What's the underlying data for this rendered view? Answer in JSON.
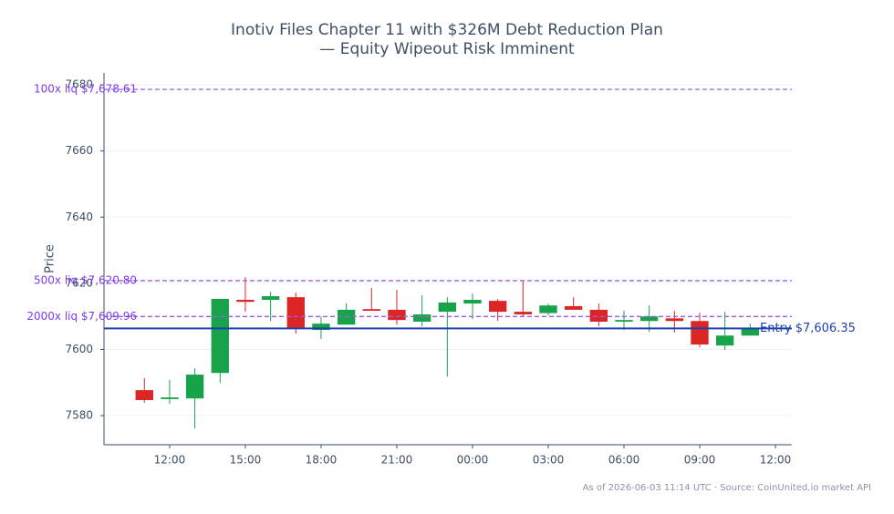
{
  "chart_data": {
    "type": "candlestick",
    "title": [
      "Inotiv Files Chapter 11 with $326M Debt Reduction Plan",
      "— Equity Wipeout Risk Imminent"
    ],
    "ylabel": "Price",
    "footer": "As of 2026-06-03 11:14 UTC · Source: CoinUnited.io market API",
    "x": [
      11,
      12,
      13,
      14,
      15,
      16,
      17,
      18,
      19,
      20,
      21,
      22,
      23,
      24,
      25,
      26,
      27,
      28,
      29,
      30,
      31,
      32,
      33,
      34,
      35
    ],
    "open": [
      7587.7,
      7585.0,
      7585.2,
      7592.9,
      7615.0,
      7615.0,
      7615.8,
      7605.9,
      7607.5,
      7612.2,
      7612.0,
      7608.4,
      7611.4,
      7613.9,
      7614.7,
      7611.4,
      7611.0,
      7613.1,
      7612.0,
      7608.4,
      7608.6,
      7609.4,
      7608.6,
      7601.2,
      7604.2
    ],
    "high": [
      7591.3,
      7590.8,
      7594.3,
      7615.3,
      7621.9,
      7617.5,
      7617.2,
      7610.0,
      7613.9,
      7618.6,
      7618.0,
      7616.4,
      7615.8,
      7616.9,
      7615.3,
      7620.8,
      7613.9,
      7615.8,
      7613.9,
      7611.7,
      7613.3,
      7611.7,
      7611.1,
      7611.4,
      7607.8
    ],
    "low": [
      7583.9,
      7583.6,
      7576.1,
      7589.9,
      7611.4,
      7608.6,
      7604.8,
      7603.1,
      7607.5,
      7611.7,
      7607.5,
      7607.0,
      7591.8,
      7609.2,
      7608.6,
      7610.0,
      7610.3,
      7612.0,
      7607.0,
      7605.9,
      7605.3,
      7605.1,
      7600.7,
      7599.8,
      7604.2
    ],
    "close": [
      7584.7,
      7585.5,
      7592.4,
      7615.3,
      7614.4,
      7616.1,
      7606.2,
      7607.8,
      7612.0,
      7611.7,
      7608.9,
      7610.6,
      7614.2,
      7615.0,
      7611.4,
      7610.6,
      7613.3,
      7612.0,
      7608.4,
      7608.9,
      7610.0,
      7608.6,
      7601.5,
      7604.2,
      7606.4
    ],
    "up_color": "#16a34a",
    "down_color": "#dc2626",
    "xlim": [
      9.4,
      36.65
    ],
    "xticks": [
      {
        "value": 12,
        "label": "12:00"
      },
      {
        "value": 15,
        "label": "15:00"
      },
      {
        "value": 18,
        "label": "18:00"
      },
      {
        "value": 21,
        "label": "21:00"
      },
      {
        "value": 24,
        "label": "00:00"
      },
      {
        "value": 27,
        "label": "03:00"
      },
      {
        "value": 30,
        "label": "06:00"
      },
      {
        "value": 33,
        "label": "09:00"
      },
      {
        "value": 36,
        "label": "12:00"
      }
    ],
    "ylim": [
      7571.2,
      7683.6
    ],
    "yticks": [
      7580,
      7600,
      7620,
      7640,
      7660,
      7680
    ],
    "grid": true,
    "lines": [
      {
        "value": 7678.61,
        "label": "100x liq $7,678.61",
        "color": "#9b5de5",
        "style": "dashed",
        "label_side": "left"
      },
      {
        "value": 7620.8,
        "label": "500x liq $7,620.80",
        "color": "#9b5de5",
        "style": "dashed",
        "label_side": "left"
      },
      {
        "value": 7609.96,
        "label": "2000x liq $7,609.96",
        "color": "#9b5de5",
        "style": "dashed",
        "label_side": "left"
      },
      {
        "value": 7606.35,
        "label": "Entry $7,606.35",
        "color": "#1e40af",
        "style": "solid",
        "label_side": "right"
      }
    ]
  }
}
